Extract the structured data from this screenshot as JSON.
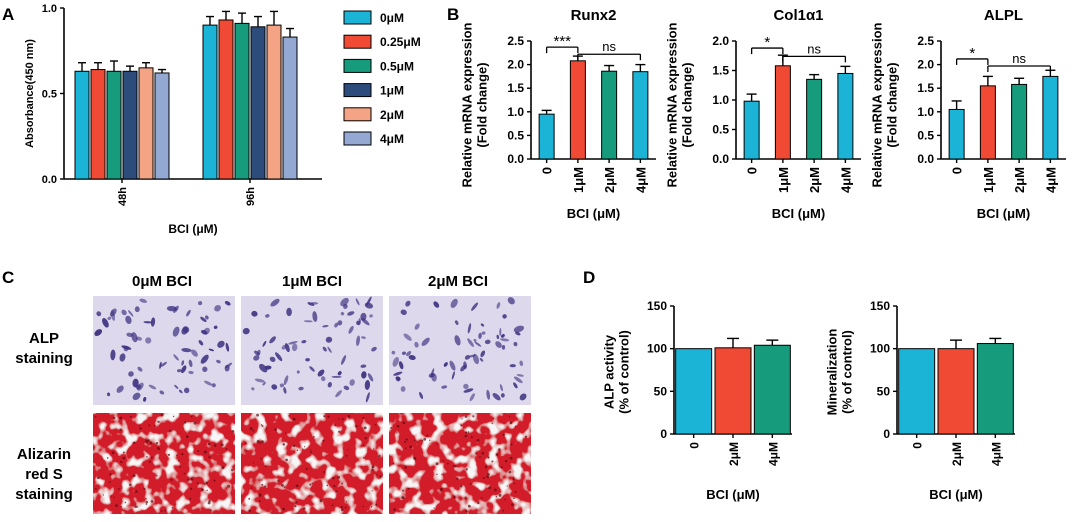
{
  "panels": {
    "A": {
      "letter": "A"
    },
    "B": {
      "letter": "B"
    },
    "C": {
      "letter": "C"
    },
    "D": {
      "letter": "D"
    }
  },
  "colors": {
    "cyan": "#1cb4d6",
    "red": "#f04a35",
    "teal": "#169c7c",
    "navy": "#2c4c7c",
    "salmon": "#f4a384",
    "lavender": "#93a8d2",
    "alp_stain_bg": "#ddd8ec",
    "alp_stain_cell": "#3d3280",
    "ars_bg": "#d21a2a",
    "ars_light": "#e8e6e6"
  },
  "chart_data": [
    {
      "id": "A",
      "type": "bar",
      "xlabel": "BCI (μM)",
      "ylabel": "Absorbance(450 nm)",
      "ylim": [
        0,
        1.0
      ],
      "yticks": [
        "0.0",
        "0.5",
        "1.0"
      ],
      "categories": [
        "48h",
        "96h"
      ],
      "legend_position": "right",
      "series": [
        {
          "name": "0μM",
          "color": "#1cb4d6",
          "values": [
            0.63,
            0.9
          ],
          "errors": [
            0.05,
            0.05
          ]
        },
        {
          "name": "0.25μM",
          "color": "#f04a35",
          "values": [
            0.64,
            0.93
          ],
          "errors": [
            0.04,
            0.05
          ]
        },
        {
          "name": "0.5μM",
          "color": "#169c7c",
          "values": [
            0.63,
            0.91
          ],
          "errors": [
            0.06,
            0.06
          ]
        },
        {
          "name": "1μM",
          "color": "#2c4c7c",
          "values": [
            0.63,
            0.89
          ],
          "errors": [
            0.03,
            0.06
          ]
        },
        {
          "name": "2μM",
          "color": "#f4a384",
          "values": [
            0.65,
            0.9
          ],
          "errors": [
            0.03,
            0.08
          ]
        },
        {
          "name": "4μM",
          "color": "#93a8d2",
          "values": [
            0.62,
            0.83
          ],
          "errors": [
            0.02,
            0.05
          ]
        }
      ]
    },
    {
      "id": "B1",
      "type": "bar",
      "title": "Runx2",
      "xlabel": "BCI (μM)",
      "ylabel": "Relative mRNA expression\n(Fold change)",
      "ylim": [
        0,
        2.5
      ],
      "yticks": [
        "0.0",
        "0.5",
        "1.0",
        "1.5",
        "2.0",
        "2.5"
      ],
      "categories": [
        "0",
        "1μM",
        "2μM",
        "4μM"
      ],
      "values": [
        0.95,
        2.08,
        1.86,
        1.85
      ],
      "errors": [
        0.08,
        0.1,
        0.12,
        0.15
      ],
      "colors": [
        "#1cb4d6",
        "#f04a35",
        "#169c7c",
        "#1cb4d6"
      ],
      "annotations": [
        {
          "text": "***",
          "from": 0,
          "to": 1,
          "y": 2.37
        },
        {
          "text": "ns",
          "from": 1,
          "to": 3,
          "y": 2.22
        }
      ]
    },
    {
      "id": "B2",
      "type": "bar",
      "title": "Col1α1",
      "xlabel": "BCI (μM)",
      "ylabel": "Relative mRNA expression\n(Fold change)",
      "ylim": [
        0,
        2.0
      ],
      "yticks": [
        "0.0",
        "0.5",
        "1.0",
        "1.5",
        "2.0"
      ],
      "categories": [
        "0",
        "1μM",
        "2μM",
        "4μM"
      ],
      "values": [
        0.98,
        1.58,
        1.35,
        1.45
      ],
      "errors": [
        0.12,
        0.18,
        0.08,
        0.12
      ],
      "colors": [
        "#1cb4d6",
        "#f04a35",
        "#169c7c",
        "#1cb4d6"
      ],
      "annotations": [
        {
          "text": "*",
          "from": 0,
          "to": 1,
          "y": 1.88
        },
        {
          "text": "ns",
          "from": 1,
          "to": 3,
          "y": 1.74
        }
      ]
    },
    {
      "id": "B3",
      "type": "bar",
      "title": "ALPL",
      "xlabel": "BCI (μM)",
      "ylabel": "Relative mRNA expression\n(Fold change)",
      "ylim": [
        0,
        2.5
      ],
      "yticks": [
        "0.0",
        "0.5",
        "1.0",
        "1.5",
        "2.0",
        "2.5"
      ],
      "categories": [
        "0",
        "1μM",
        "2μM",
        "4μM"
      ],
      "values": [
        1.05,
        1.55,
        1.58,
        1.75
      ],
      "errors": [
        0.18,
        0.2,
        0.13,
        0.13
      ],
      "colors": [
        "#1cb4d6",
        "#f04a35",
        "#169c7c",
        "#1cb4d6"
      ],
      "annotations": [
        {
          "text": "*",
          "from": 0,
          "to": 1,
          "y": 2.12
        },
        {
          "text": "ns",
          "from": 1,
          "to": 3,
          "y": 1.97
        }
      ]
    },
    {
      "id": "D1",
      "type": "bar",
      "xlabel": "BCI (μM)",
      "ylabel": "ALP activity\n(% of control)",
      "ylim": [
        0,
        150
      ],
      "yticks": [
        "0",
        "50",
        "100",
        "150"
      ],
      "categories": [
        "0",
        "2μM",
        "4μM"
      ],
      "values": [
        100,
        101,
        104
      ],
      "errors": [
        0,
        11,
        6
      ],
      "colors": [
        "#1cb4d6",
        "#f04a35",
        "#169c7c"
      ]
    },
    {
      "id": "D2",
      "type": "bar",
      "xlabel": "BCI (μM)",
      "ylabel": "Mineralization\n(% of control)",
      "ylim": [
        0,
        150
      ],
      "yticks": [
        "0",
        "50",
        "100",
        "150"
      ],
      "categories": [
        "0",
        "2μM",
        "4μM"
      ],
      "values": [
        100,
        100,
        106
      ],
      "errors": [
        0,
        10,
        6
      ],
      "colors": [
        "#1cb4d6",
        "#f04a35",
        "#169c7c"
      ]
    }
  ],
  "staining": {
    "columns": [
      "0μM BCI",
      "1μM BCI",
      "2μM BCI"
    ],
    "rows": [
      {
        "label_lines": [
          "ALP",
          "staining"
        ],
        "kind": "alp"
      },
      {
        "label_lines": [
          "Alizarin",
          "red S",
          "staining"
        ],
        "kind": "ars"
      }
    ]
  }
}
